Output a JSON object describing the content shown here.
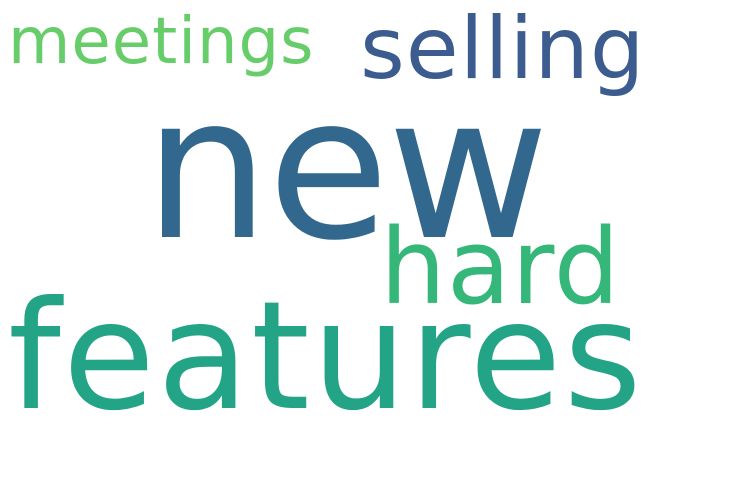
{
  "words": [
    {
      "text": "meetings",
      "color": "#67cd6a"
    },
    {
      "text": "selling",
      "color": "#3c5c8f"
    },
    {
      "text": "new",
      "color": "#32678e"
    },
    {
      "text": "hard",
      "color": "#35b779"
    },
    {
      "text": "features",
      "color": "#23a487"
    }
  ]
}
